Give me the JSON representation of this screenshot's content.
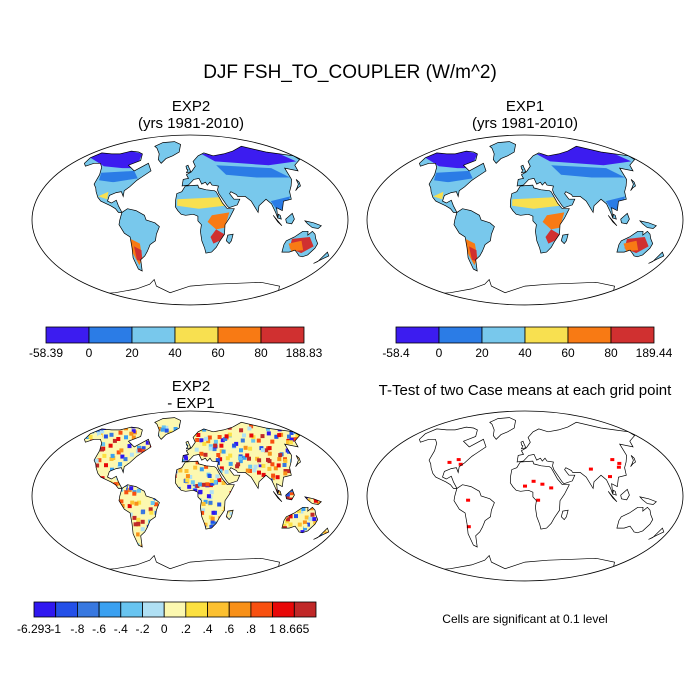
{
  "figure": {
    "title": "DJF FSH_TO_COUPLER (W/m^2)",
    "panels": [
      {
        "id": "exp2",
        "title_lines": [
          "EXP2",
          "(yrs 1981-2010)"
        ],
        "colorbar": {
          "colors": [
            "#3c1cf0",
            "#2b7ce6",
            "#78c8ec",
            "#f8e050",
            "#f87a14",
            "#d03030"
          ],
          "labels": [
            "-58.39",
            "0",
            "20",
            "40",
            "60",
            "80",
            "188.83"
          ]
        }
      },
      {
        "id": "exp1",
        "title_lines": [
          "EXP1",
          "(yrs 1981-2010)"
        ],
        "colorbar": {
          "colors": [
            "#3c1cf0",
            "#2b7ce6",
            "#78c8ec",
            "#f8e050",
            "#f87a14",
            "#d03030"
          ],
          "labels": [
            "-58.4",
            "0",
            "20",
            "40",
            "60",
            "80",
            "189.44"
          ]
        }
      },
      {
        "id": "diff",
        "title_lines": [
          "EXP2",
          "- EXP1"
        ],
        "colorbar": {
          "colors": [
            "#3018f0",
            "#2450e8",
            "#3878e0",
            "#3aa0f0",
            "#68c4f0",
            "#b0e0f4",
            "#fcf8b0",
            "#fce040",
            "#fcc030",
            "#f89018",
            "#f85010",
            "#e80808",
            "#c02828"
          ],
          "labels": [
            "-6.293",
            "-1",
            "-.8",
            "-.6",
            "-.4",
            "-.2",
            "0",
            ".2",
            ".4",
            ".6",
            ".8",
            "1",
            "8.665"
          ]
        }
      },
      {
        "id": "ttest",
        "title_lines": [
          "T-Test of two Case means at each grid point"
        ],
        "note": "Cells are significant at 0.1 level"
      }
    ]
  }
}
